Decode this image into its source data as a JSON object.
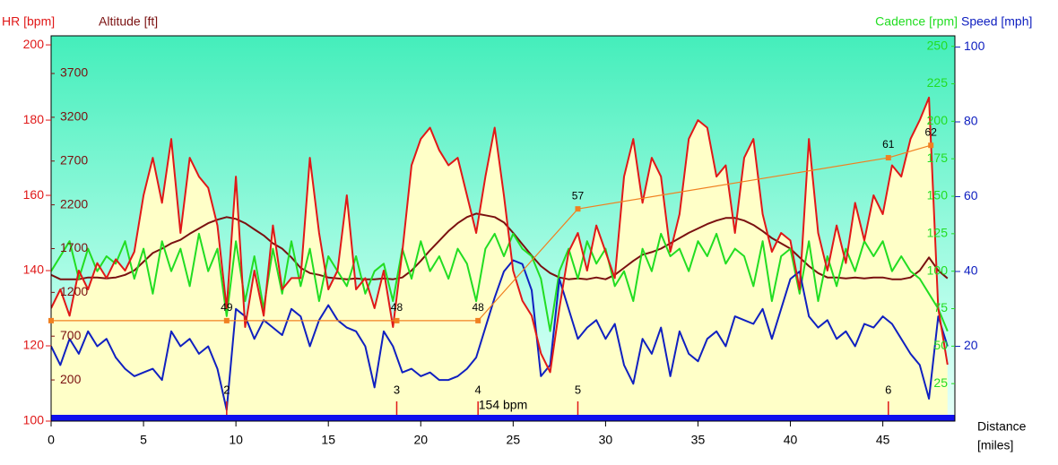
{
  "chart_data": {
    "type": "line",
    "x_label": "Distance",
    "x_unit": "[miles]",
    "xlim": [
      0,
      48.9
    ],
    "xticks": [
      0,
      5,
      10,
      15,
      20,
      25,
      30,
      35,
      40,
      45
    ],
    "x": [
      0,
      0.5,
      1,
      1.5,
      2,
      2.5,
      3,
      3.5,
      4,
      4.5,
      5,
      5.5,
      6,
      6.5,
      7,
      7.5,
      8,
      8.5,
      9,
      9.5,
      10,
      10.5,
      11,
      11.5,
      12,
      12.5,
      13,
      13.5,
      14,
      14.5,
      15,
      15.5,
      16,
      16.5,
      17,
      17.5,
      18,
      18.5,
      19,
      19.5,
      20,
      20.5,
      21,
      21.5,
      22,
      22.5,
      23,
      23.5,
      24,
      24.5,
      25,
      25.5,
      26,
      26.5,
      27,
      27.5,
      28,
      28.5,
      29,
      29.5,
      30,
      30.5,
      31,
      31.5,
      32,
      32.5,
      33,
      33.5,
      34,
      34.5,
      35,
      35.5,
      36,
      36.5,
      37,
      37.5,
      38,
      38.5,
      39,
      39.5,
      40,
      40.5,
      41,
      41.5,
      42,
      42.5,
      43,
      43.5,
      44,
      44.5,
      45,
      45.5,
      46,
      46.5,
      47,
      47.5,
      48,
      48.5
    ],
    "series": [
      {
        "name": "Altitude [ft]",
        "color": "#7a1010",
        "side": "left-inner",
        "ylim": [
          -270,
          4130
        ],
        "yticks": [
          200,
          700,
          1200,
          1700,
          2200,
          2700,
          3200,
          3700
        ],
        "values": [
          1400,
          1350,
          1350,
          1350,
          1370,
          1370,
          1360,
          1370,
          1400,
          1450,
          1550,
          1650,
          1700,
          1760,
          1800,
          1870,
          1930,
          1990,
          2030,
          2060,
          2040,
          1990,
          1920,
          1850,
          1760,
          1700,
          1600,
          1480,
          1420,
          1400,
          1370,
          1360,
          1350,
          1360,
          1350,
          1350,
          1360,
          1350,
          1370,
          1450,
          1560,
          1680,
          1790,
          1900,
          1990,
          2060,
          2100,
          2080,
          2060,
          2000,
          1880,
          1750,
          1620,
          1500,
          1420,
          1370,
          1350,
          1360,
          1350,
          1370,
          1350,
          1400,
          1480,
          1560,
          1630,
          1660,
          1700,
          1760,
          1820,
          1880,
          1930,
          1980,
          2020,
          2050,
          2050,
          2020,
          1970,
          1900,
          1820,
          1760,
          1700,
          1600,
          1500,
          1420,
          1370,
          1370,
          1360,
          1370,
          1360,
          1370,
          1370,
          1350,
          1350,
          1370,
          1450,
          1600,
          1450,
          1360
        ]
      },
      {
        "name": "Cadence [rpm]",
        "color": "#22dd22",
        "side": "right-inner",
        "ylim": [
          0,
          257
        ],
        "yticks": [
          25,
          50,
          75,
          100,
          125,
          150,
          175,
          200,
          225,
          250
        ],
        "values": [
          100,
          110,
          120,
          95,
          115,
          100,
          110,
          105,
          120,
          95,
          115,
          85,
          120,
          100,
          115,
          90,
          125,
          100,
          115,
          70,
          120,
          80,
          110,
          75,
          115,
          85,
          120,
          90,
          115,
          80,
          110,
          100,
          90,
          110,
          85,
          100,
          105,
          80,
          115,
          95,
          120,
          100,
          110,
          95,
          115,
          105,
          80,
          115,
          125,
          110,
          125,
          115,
          110,
          95,
          60,
          100,
          115,
          95,
          120,
          105,
          115,
          90,
          100,
          80,
          115,
          100,
          125,
          110,
          115,
          100,
          120,
          110,
          125,
          105,
          115,
          110,
          90,
          120,
          80,
          110,
          115,
          85,
          120,
          80,
          110,
          90,
          115,
          100,
          120,
          110,
          120,
          100,
          110,
          100,
          95,
          85,
          75,
          60
        ]
      },
      {
        "name": "Speed [mph]",
        "color": "#1020c0",
        "side": "right",
        "ylim": [
          0,
          103
        ],
        "yticks": [
          20,
          40,
          60,
          80,
          100
        ],
        "values": [
          20,
          15,
          22,
          18,
          24,
          20,
          22,
          17,
          14,
          12,
          13,
          14,
          11,
          24,
          20,
          22,
          18,
          20,
          14,
          3,
          30,
          28,
          22,
          27,
          25,
          23,
          30,
          28,
          20,
          27,
          31,
          27,
          25,
          24,
          20,
          9,
          24,
          20,
          13,
          14,
          12,
          13,
          11,
          11,
          12,
          14,
          17,
          25,
          33,
          40,
          43,
          42,
          35,
          12,
          15,
          38,
          30,
          22,
          25,
          27,
          22,
          26,
          15,
          10,
          22,
          18,
          25,
          12,
          24,
          18,
          16,
          22,
          24,
          20,
          28,
          27,
          26,
          30,
          22,
          30,
          38,
          40,
          28,
          25,
          27,
          22,
          24,
          20,
          26,
          25,
          28,
          26,
          22,
          18,
          15,
          6,
          28,
          20
        ]
      },
      {
        "name": "HR [bpm]",
        "color": "#e01818",
        "side": "left",
        "area": "#ffffc8",
        "ylim": [
          100,
          202.4
        ],
        "yticks": [
          100,
          120,
          140,
          160,
          180,
          200
        ],
        "values": [
          130,
          135,
          128,
          140,
          135,
          142,
          138,
          143,
          140,
          145,
          160,
          170,
          158,
          175,
          150,
          170,
          165,
          162,
          152,
          130,
          165,
          125,
          140,
          128,
          152,
          135,
          138,
          138,
          170,
          150,
          135,
          140,
          160,
          135,
          138,
          130,
          140,
          125,
          145,
          168,
          175,
          178,
          172,
          168,
          170,
          160,
          150,
          165,
          178,
          160,
          140,
          132,
          128,
          118,
          113,
          130,
          145,
          150,
          140,
          152,
          145,
          138,
          165,
          175,
          158,
          170,
          165,
          145,
          155,
          175,
          180,
          178,
          165,
          168,
          150,
          170,
          175,
          155,
          145,
          150,
          148,
          135,
          175,
          150,
          140,
          152,
          142,
          158,
          148,
          160,
          155,
          168,
          165,
          175,
          180,
          186,
          130,
          115
        ]
      }
    ],
    "markers": {
      "color": "#f08020",
      "x": [
        0,
        9.5,
        18.7,
        23.1,
        28.5,
        45.3,
        47.6
      ],
      "values": [
        126.7,
        126.7,
        126.7,
        126.7,
        156.4,
        170,
        173.3
      ],
      "labels": [
        null,
        49,
        48,
        48,
        57,
        61,
        62
      ]
    },
    "laps": {
      "x": [
        9.5,
        18.7,
        23.1,
        28.5,
        45.3
      ],
      "labels": [
        2,
        3,
        4,
        5,
        6
      ]
    },
    "annotation": "154 bpm"
  }
}
